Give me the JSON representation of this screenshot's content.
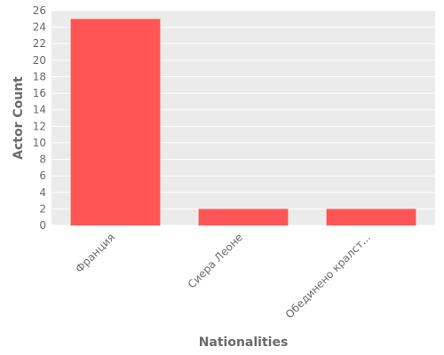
{
  "chart_data": {
    "type": "bar",
    "categories": [
      "Франция",
      "Сиера Леоне",
      "Обединено кралст..."
    ],
    "values": [
      25,
      2,
      2
    ],
    "xlabel": "Nationalities",
    "ylabel": "Actor Count",
    "ylim": [
      0,
      26
    ],
    "yticks": [
      0,
      2,
      4,
      6,
      8,
      10,
      12,
      14,
      16,
      18,
      20,
      22,
      24,
      26
    ],
    "grid": true,
    "legend": "none",
    "bar_color": "#ff5555",
    "background_color": "#ebebeb",
    "grid_color": "#ffffff"
  }
}
